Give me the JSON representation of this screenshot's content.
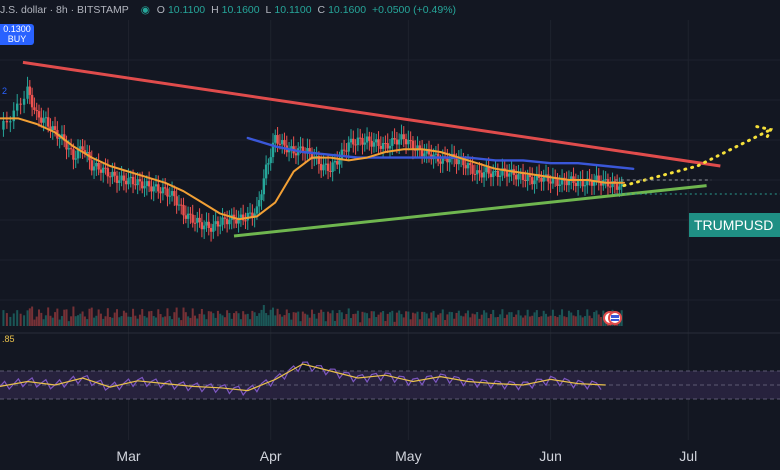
{
  "header": {
    "symbol_partial": "J.S. dollar · 8h · BITSTAMP",
    "open_label": "O",
    "open": "10.1100",
    "high_label": "H",
    "high": "10.1600",
    "low_label": "L",
    "low": "10.1100",
    "close_label": "C",
    "close": "10.1600",
    "change": "+0.0500 (+0.49%)"
  },
  "price_box": {
    "value": "0.1300",
    "action": "BUY"
  },
  "left_labels": {
    "ma_value_partial": "2",
    "rsi_value_partial": ".85"
  },
  "ticker_tag": "TRUMPUSD",
  "colors": {
    "background": "#131722",
    "up": "#26a69a",
    "down": "#ef5350",
    "resistance": "#e04c4c",
    "support": "#6fb64f",
    "ma_slow": "#3a57d8",
    "ma_fast": "#f2a035",
    "projection": "#f5e03a",
    "rsi_band": "#2a2440",
    "rsi_line": "#7e57c2",
    "rsi_ma": "#e8c04b"
  },
  "chart_data": {
    "type": "line",
    "title": "",
    "xlabel": "",
    "ylabel": "",
    "x_ticks": [
      "Mar",
      "Apr",
      "May",
      "Jun",
      "Jul"
    ],
    "x_tick_days": [
      28,
      59,
      89,
      120,
      150
    ],
    "x_range_days": [
      0,
      170
    ],
    "y_range": [
      0,
      100
    ],
    "grid": true,
    "legend": "none",
    "series": [
      {
        "name": "",
        "role": "price_close",
        "x": [
          0,
          3,
          6,
          8,
          10,
          12,
          14,
          16,
          18,
          20,
          22,
          24,
          26,
          28,
          30,
          32,
          34,
          36,
          38,
          40,
          42,
          44,
          46,
          48,
          50,
          52,
          54,
          56,
          58,
          60,
          62,
          64,
          66,
          68,
          70,
          72,
          74,
          76,
          78,
          80,
          82,
          84,
          86,
          88,
          90,
          92,
          94,
          96,
          98,
          100,
          102,
          104,
          106,
          108,
          110,
          112,
          114,
          116,
          118,
          120,
          122,
          124,
          126,
          128,
          130,
          132,
          134,
          136
        ],
        "y": [
          68,
          74,
          82,
          73,
          71,
          67,
          64,
          58,
          62,
          55,
          54,
          52,
          50,
          50,
          49,
          48,
          47,
          46,
          44,
          38,
          36,
          34,
          33,
          35,
          36,
          36,
          37,
          39,
          54,
          65,
          62,
          60,
          61,
          59,
          55,
          54,
          58,
          63,
          64,
          64,
          63,
          62,
          64,
          65,
          62,
          60,
          59,
          57,
          58,
          57,
          55,
          52,
          53,
          52,
          53,
          52,
          51,
          50,
          51,
          50,
          49,
          50,
          49,
          49,
          50,
          49,
          48,
          48
        ]
      },
      {
        "name": "",
        "role": "ma_fast",
        "x": [
          0,
          4,
          8,
          12,
          16,
          20,
          24,
          28,
          32,
          36,
          40,
          44,
          48,
          52,
          56,
          60,
          64,
          68,
          72,
          76,
          80,
          84,
          88,
          92,
          96,
          100,
          104,
          108,
          112,
          116,
          120,
          124,
          128,
          132,
          136
        ],
        "y": [
          72,
          72,
          70,
          67,
          62,
          58,
          55,
          53,
          51,
          49,
          46,
          42,
          38,
          36,
          37,
          42,
          53,
          58,
          58,
          57,
          58,
          60,
          61,
          61,
          60,
          58,
          56,
          54,
          53,
          52,
          51,
          50,
          50,
          49,
          49
        ]
      },
      {
        "name": "",
        "role": "ma_slow",
        "x": [
          54,
          60,
          66,
          72,
          78,
          84,
          90,
          96,
          102,
          108,
          114,
          120,
          126,
          132,
          138
        ],
        "y": [
          65,
          62,
          60,
          59,
          58,
          58,
          58,
          58,
          58,
          57,
          57,
          56,
          56,
          55,
          54
        ]
      },
      {
        "name": "",
        "role": "rsi",
        "x": [
          0,
          6,
          12,
          18,
          24,
          30,
          36,
          42,
          48,
          54,
          60,
          66,
          72,
          78,
          84,
          90,
          96,
          102,
          108,
          114,
          120,
          126,
          132
        ],
        "y": [
          48,
          55,
          50,
          60,
          47,
          56,
          52,
          48,
          46,
          42,
          58,
          80,
          70,
          60,
          64,
          55,
          62,
          55,
          52,
          50,
          58,
          52,
          50
        ]
      }
    ],
    "trendlines": [
      {
        "name": "",
        "role": "resistance",
        "from": [
          5,
          92
        ],
        "to": [
          157,
          55
        ]
      },
      {
        "name": "",
        "role": "support",
        "from": [
          51,
          30
        ],
        "to": [
          154,
          48
        ]
      },
      {
        "name": "",
        "role": "projection",
        "points": [
          [
            136,
            48
          ],
          [
            152,
            55
          ],
          [
            168,
            68
          ]
        ]
      }
    ]
  }
}
